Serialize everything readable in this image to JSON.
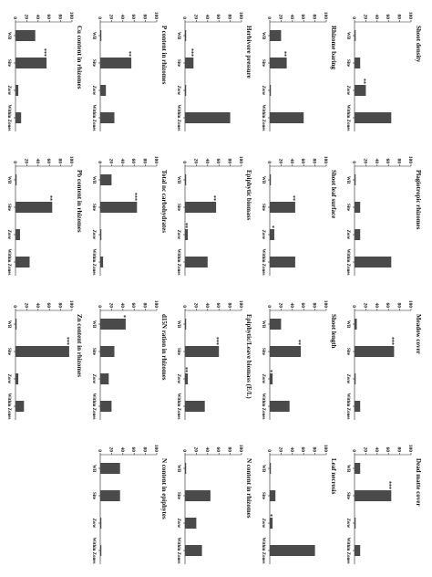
{
  "chart_data": {
    "type": "bar",
    "rotated": "90deg-clockwise",
    "categories": [
      "WB",
      "Site",
      "Zone",
      "Within Zones"
    ],
    "ylim": [
      0,
      100
    ],
    "yticks": [
      0,
      20,
      40,
      60,
      80,
      100
    ],
    "panels": [
      {
        "title": "Shoot density",
        "values": [
          2,
          10,
          20,
          65
        ],
        "sig": [
          "",
          "",
          "**",
          ""
        ]
      },
      {
        "title": "Plagiotropic rhizomes",
        "values": [
          2,
          10,
          10,
          65
        ],
        "sig": [
          "",
          "",
          "",
          ""
        ]
      },
      {
        "title": "Meadow cover",
        "values": [
          4,
          70,
          2,
          10
        ],
        "sig": [
          "",
          "***",
          "",
          ""
        ]
      },
      {
        "title": "Dead matte cover",
        "values": [
          10,
          65,
          2,
          10
        ],
        "sig": [
          "",
          "***",
          "",
          ""
        ]
      },
      {
        "title": "Rhizome baring",
        "values": [
          20,
          30,
          2,
          60
        ],
        "sig": [
          "",
          "**",
          "",
          ""
        ]
      },
      {
        "title": "Shoot leaf surface",
        "values": [
          2,
          45,
          8,
          45
        ],
        "sig": [
          "",
          "**",
          "*",
          ""
        ]
      },
      {
        "title": "Shoot length",
        "values": [
          20,
          55,
          5,
          35
        ],
        "sig": [
          "",
          "**",
          "*",
          ""
        ]
      },
      {
        "title": "Leaf necrosis",
        "values": [
          2,
          10,
          5,
          80
        ],
        "sig": [
          "",
          "",
          "*",
          ""
        ]
      },
      {
        "title": "Herbivore pressure",
        "values": [
          2,
          15,
          2,
          80
        ],
        "sig": [
          "",
          "***",
          "",
          ""
        ]
      },
      {
        "title": "Epiphytic biomass",
        "values": [
          2,
          55,
          5,
          40
        ],
        "sig": [
          "",
          "**",
          "**",
          ""
        ]
      },
      {
        "title": "Epiphytic/Leave biomass (E/L)",
        "values": [
          2,
          60,
          5,
          35
        ],
        "sig": [
          "",
          "***",
          "**",
          ""
        ]
      },
      {
        "title": "N content in rhizomes",
        "values": [
          2,
          45,
          20,
          30
        ],
        "sig": [
          "",
          "",
          "",
          ""
        ]
      },
      {
        "title": "P content in rhizomes",
        "values": [
          2,
          55,
          10,
          25
        ],
        "sig": [
          "",
          "**",
          "",
          ""
        ]
      },
      {
        "title": "Total nc carbohydrates",
        "values": [
          20,
          65,
          2,
          5
        ],
        "sig": [
          "",
          "***",
          "",
          ""
        ]
      },
      {
        "title": "d15N ration in rhizomes",
        "values": [
          45,
          25,
          15,
          20
        ],
        "sig": [
          "*",
          "",
          "",
          ""
        ]
      },
      {
        "title": "N content in epiphytes",
        "values": [
          35,
          35,
          2,
          2
        ],
        "sig": [
          "",
          "",
          "",
          ""
        ]
      },
      {
        "title": "Cu content in rhizomes",
        "values": [
          35,
          55,
          5,
          10
        ],
        "sig": [
          "",
          "***",
          "",
          ""
        ]
      },
      {
        "title": "Pb content in rhizomes",
        "values": [
          2,
          65,
          8,
          25
        ],
        "sig": [
          "",
          "**",
          "",
          ""
        ]
      },
      {
        "title": "Zn content in rhizomes",
        "values": [
          2,
          95,
          5,
          15
        ],
        "sig": [
          "",
          "***",
          "",
          ""
        ]
      }
    ]
  }
}
